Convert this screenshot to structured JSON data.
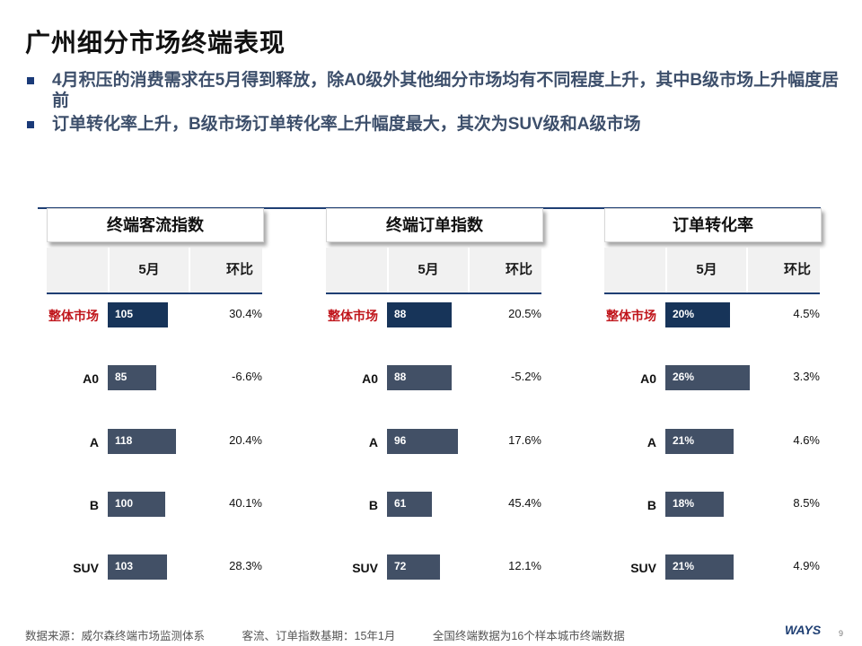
{
  "title": "广州细分市场终端表现",
  "bullets": [
    "4月积压的消费需求在5月得到释放，除A0级外其他细分市场均有不同程度上升，其中B级市场上升幅度居前",
    "订单转化率上升，B级市场订单转化率上升幅度最大，其次为SUV级和A级市场"
  ],
  "columns": {
    "month": "5月",
    "change": "环比"
  },
  "categories": [
    "整体市场",
    "A0",
    "A",
    "B",
    "SUV"
  ],
  "panels": [
    {
      "title": "终端客流指数",
      "values": [
        "105",
        "85",
        "118",
        "100",
        "103"
      ],
      "numeric": [
        105,
        85,
        118,
        100,
        103
      ],
      "changes": [
        "30.4%",
        "-6.6%",
        "20.4%",
        "40.1%",
        "28.3%"
      ]
    },
    {
      "title": "终端订单指数",
      "values": [
        "88",
        "88",
        "96",
        "61",
        "72"
      ],
      "numeric": [
        88,
        88,
        96,
        61,
        72
      ],
      "changes": [
        "20.5%",
        "-5.2%",
        "17.6%",
        "45.4%",
        "12.1%"
      ]
    },
    {
      "title": "订单转化率",
      "values": [
        "20%",
        "26%",
        "21%",
        "18%",
        "21%"
      ],
      "numeric": [
        20,
        26,
        21,
        18,
        21
      ],
      "changes": [
        "4.5%",
        "3.3%",
        "4.6%",
        "8.5%",
        "4.9%"
      ]
    }
  ],
  "footer": {
    "source": "数据来源：威尔森终端市场监测体系",
    "base": "客流、订单指数基期：15年1月",
    "note": "全国终端数据为16个样本城市终端数据"
  },
  "logo": "WAYS",
  "page_number": "9",
  "colors": {
    "bar": "#425066",
    "bar_total": "#173459",
    "accent_red": "#c0151b",
    "rule": "#1f3f73"
  }
}
